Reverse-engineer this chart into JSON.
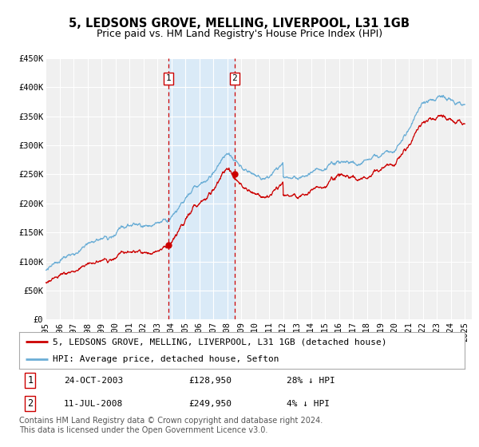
{
  "title": "5, LEDSONS GROVE, MELLING, LIVERPOOL, L31 1GB",
  "subtitle": "Price paid vs. HM Land Registry's House Price Index (HPI)",
  "ylim": [
    0,
    450000
  ],
  "yticks": [
    0,
    50000,
    100000,
    150000,
    200000,
    250000,
    300000,
    350000,
    400000,
    450000
  ],
  "ytick_labels": [
    "£0",
    "£50K",
    "£100K",
    "£150K",
    "£200K",
    "£250K",
    "£300K",
    "£350K",
    "£400K",
    "£450K"
  ],
  "xlim_start": 1995.0,
  "xlim_end": 2025.5,
  "xticks": [
    1995,
    1996,
    1997,
    1998,
    1999,
    2000,
    2001,
    2002,
    2003,
    2004,
    2005,
    2006,
    2007,
    2008,
    2009,
    2010,
    2011,
    2012,
    2013,
    2014,
    2015,
    2016,
    2017,
    2018,
    2019,
    2020,
    2021,
    2022,
    2023,
    2024,
    2025
  ],
  "background_color": "#ffffff",
  "plot_bg_color": "#f0f0f0",
  "grid_color": "#ffffff",
  "hpi_color": "#6baed6",
  "price_color": "#cc0000",
  "shade_color": "#daeaf7",
  "dashed_line_color": "#cc0000",
  "event1_x": 2003.81,
  "event1_y": 128950,
  "event1_label": "1",
  "event1_date": "24-OCT-2003",
  "event1_price": "£128,950",
  "event1_hpi": "28% ↓ HPI",
  "event2_x": 2008.52,
  "event2_y": 249950,
  "event2_label": "2",
  "event2_date": "11-JUL-2008",
  "event2_price": "£249,950",
  "event2_hpi": "4% ↓ HPI",
  "legend_line1": "5, LEDSONS GROVE, MELLING, LIVERPOOL, L31 1GB (detached house)",
  "legend_line2": "HPI: Average price, detached house, Sefton",
  "footnote": "Contains HM Land Registry data © Crown copyright and database right 2024.\nThis data is licensed under the Open Government Licence v3.0.",
  "title_fontsize": 10.5,
  "subtitle_fontsize": 9,
  "tick_fontsize": 7.5,
  "legend_fontsize": 8,
  "table_fontsize": 8,
  "footnote_fontsize": 7
}
